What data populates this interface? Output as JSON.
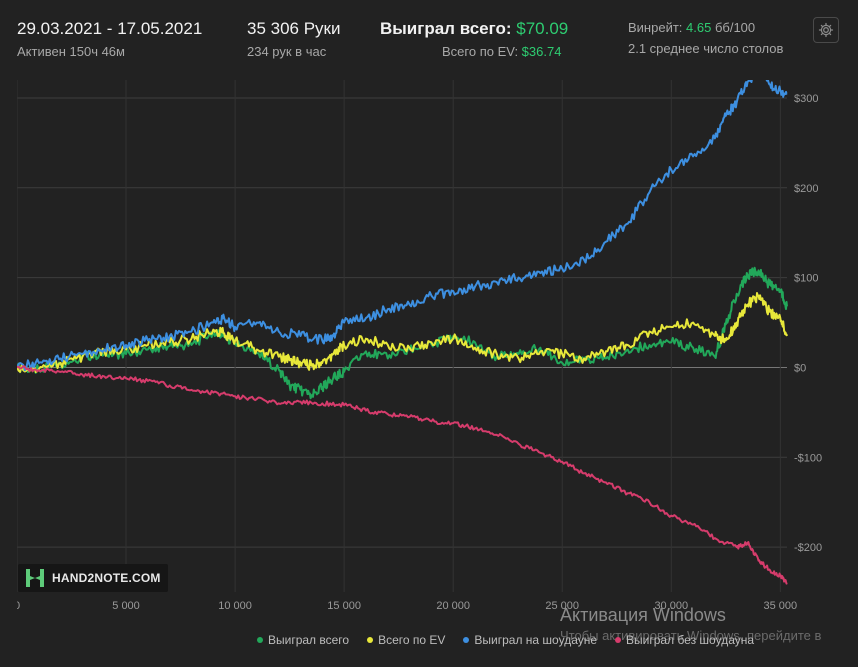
{
  "header": {
    "date_range": "29.03.2021 - 17.05.2021",
    "active": "Активен 150ч 46м",
    "hands": "35 306 Руки",
    "hands_per_hour": "234 рук в час",
    "won_label": "Выиграл всего: ",
    "won_value": "$70.09",
    "ev_label": "Всего по EV: ",
    "ev_value": "$36.74",
    "winrate_label": "Винрейт: ",
    "winrate_value": "4.65",
    "winrate_unit": " бб/100",
    "tables": "2.1 среднее число столов"
  },
  "logo": {
    "text": "HAND2NOTE.COM"
  },
  "watermark": {
    "line1": "Активация Windows",
    "line2": "Чтобы активировать Windows, перейдите в"
  },
  "legend": [
    "Выиграл всего",
    "Всего по EV",
    "Выиграл на шоудауне",
    "Выиграл без шоудауна"
  ],
  "colors": {
    "green": "#22a85a",
    "yellow": "#e8e83a",
    "blue": "#3d8fe0",
    "red": "#d63c6c",
    "accent": "#2ecc71"
  },
  "chart_data": {
    "type": "line",
    "xlabel": "",
    "ylabel": "",
    "xlim": [
      0,
      35306
    ],
    "ylim": [
      -250,
      320
    ],
    "x_ticks": [
      0,
      5000,
      10000,
      15000,
      20000,
      25000,
      30000,
      35000
    ],
    "x_tick_labels": [
      "0",
      "5 000",
      "10 000",
      "15 000",
      "20 000",
      "25 000",
      "30 000",
      "35 000"
    ],
    "y_ticks": [
      300,
      200,
      100,
      0,
      -100,
      -200
    ],
    "y_tick_labels": [
      "$300",
      "$200",
      "$100",
      "$0",
      "-$100",
      "-$200"
    ],
    "grid": true,
    "legend_position": "bottom",
    "series": [
      {
        "name": "Выиграл всего",
        "color": "#22a85a",
        "x": [
          0,
          1000,
          2000,
          3000,
          4000,
          5000,
          6000,
          7000,
          8000,
          9000,
          9500,
          10000,
          11000,
          12000,
          12500,
          13000,
          13500,
          14000,
          14500,
          15000,
          16000,
          17000,
          18000,
          19000,
          20000,
          21000,
          22000,
          23000,
          24000,
          25000,
          26000,
          27000,
          28000,
          29000,
          30000,
          31000,
          32000,
          32500,
          33000,
          33500,
          34000,
          34500,
          35000,
          35306
        ],
        "y": [
          0,
          -3,
          4,
          12,
          15,
          15,
          20,
          24,
          25,
          40,
          34,
          27,
          16,
          -2,
          -20,
          -25,
          -32,
          -22,
          -12,
          -5,
          18,
          10,
          20,
          26,
          35,
          28,
          12,
          15,
          22,
          5,
          8,
          10,
          20,
          25,
          28,
          22,
          12,
          48,
          82,
          103,
          108,
          92,
          86,
          68
        ]
      },
      {
        "name": "Всего по EV",
        "color": "#e8e83a",
        "x": [
          0,
          1000,
          2000,
          3000,
          4000,
          5000,
          6000,
          7000,
          8000,
          9000,
          9500,
          10000,
          11000,
          12000,
          12500,
          13000,
          13500,
          14000,
          14500,
          15000,
          16000,
          17000,
          18000,
          19000,
          20000,
          21000,
          22000,
          23000,
          24000,
          25000,
          26000,
          27000,
          28000,
          29000,
          30000,
          31000,
          32000,
          32500,
          33000,
          33500,
          34000,
          34500,
          35000,
          35306
        ],
        "y": [
          0,
          -2,
          5,
          12,
          18,
          20,
          25,
          28,
          32,
          42,
          38,
          30,
          20,
          12,
          8,
          5,
          2,
          5,
          15,
          25,
          32,
          25,
          22,
          28,
          32,
          22,
          15,
          10,
          18,
          15,
          10,
          18,
          25,
          40,
          45,
          50,
          35,
          30,
          50,
          70,
          80,
          62,
          55,
          35
        ]
      },
      {
        "name": "Выиграл на шоудауне",
        "color": "#3d8fe0",
        "x": [
          0,
          1000,
          2000,
          3000,
          4000,
          5000,
          6000,
          7000,
          8000,
          9000,
          9500,
          10000,
          11000,
          12000,
          13000,
          14000,
          14500,
          15000,
          16000,
          17000,
          18000,
          19000,
          20000,
          21000,
          22000,
          23000,
          24000,
          25000,
          26000,
          27000,
          28000,
          29000,
          30000,
          31000,
          32000,
          32500,
          33000,
          33500,
          34000,
          34500,
          35000,
          35306
        ],
        "y": [
          0,
          5,
          10,
          15,
          20,
          25,
          30,
          35,
          40,
          50,
          55,
          45,
          50,
          40,
          35,
          30,
          35,
          50,
          55,
          65,
          70,
          80,
          85,
          90,
          95,
          100,
          105,
          110,
          120,
          140,
          160,
          195,
          220,
          235,
          255,
          280,
          295,
          318,
          326,
          315,
          308,
          305
        ]
      },
      {
        "name": "Выиграл без шоудауна",
        "color": "#d63c6c",
        "x": [
          0,
          1000,
          2000,
          3000,
          4000,
          5000,
          6000,
          7000,
          8000,
          9000,
          10000,
          11000,
          12000,
          13000,
          14000,
          15000,
          16000,
          17000,
          18000,
          19000,
          20000,
          21000,
          22000,
          23000,
          24000,
          25000,
          26000,
          27000,
          28000,
          29000,
          30000,
          31000,
          32000,
          33000,
          33500,
          34000,
          34500,
          35000,
          35306
        ],
        "y": [
          0,
          -3,
          -5,
          -8,
          -10,
          -12,
          -15,
          -20,
          -25,
          -28,
          -32,
          -35,
          -40,
          -38,
          -40,
          -42,
          -48,
          -52,
          -55,
          -60,
          -62,
          -68,
          -75,
          -85,
          -95,
          -105,
          -118,
          -128,
          -140,
          -150,
          -165,
          -175,
          -190,
          -200,
          -195,
          -215,
          -225,
          -232,
          -240
        ]
      }
    ]
  }
}
